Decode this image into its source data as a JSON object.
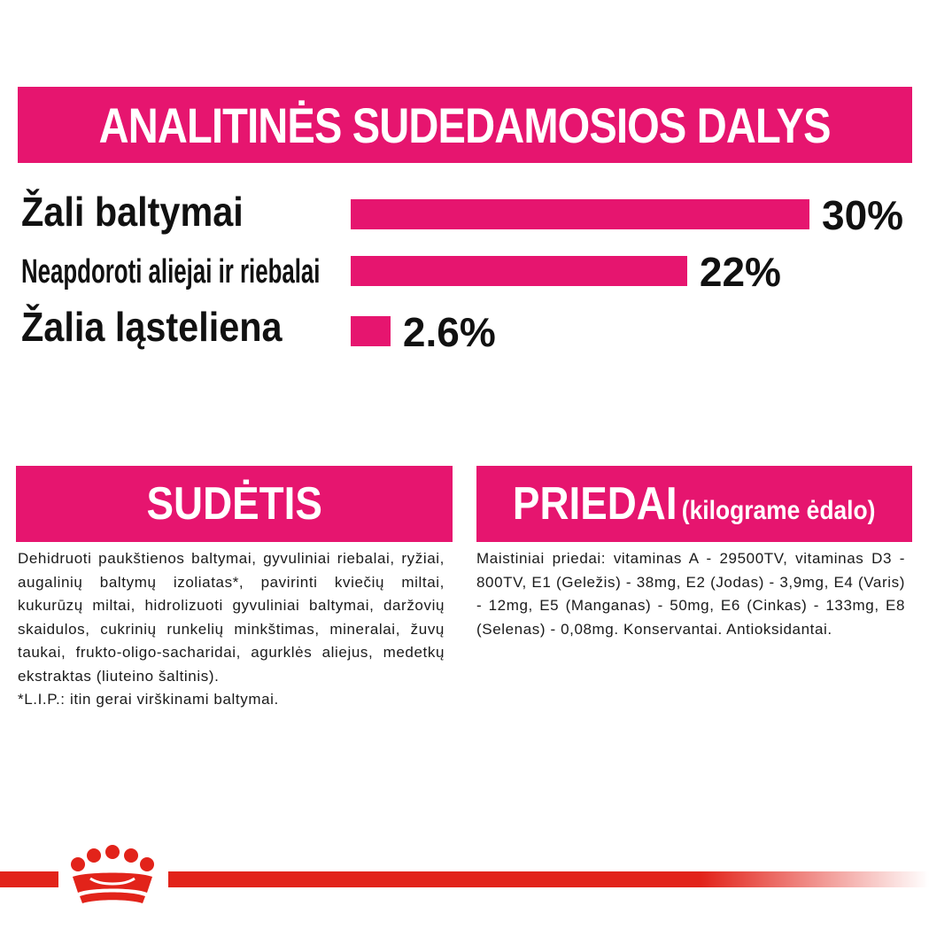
{
  "colors": {
    "accent": "#e6156f",
    "footer_red": "#e2231a",
    "text": "#111111"
  },
  "header": {
    "title": "ANALITINĖS SUDEDAMOSIOS DALYS"
  },
  "nutrients": [
    {
      "label": "Žali baltymai",
      "value": "30%",
      "percent": 30
    },
    {
      "label": "Neapdoroti aliejai ir riebalai",
      "value": "22%",
      "percent": 22
    },
    {
      "label": "Žalia ląsteliena",
      "value": "2.6%",
      "percent": 2.6
    }
  ],
  "composition": {
    "title": "SUDĖTIS",
    "text": "Dehidruoti paukštienos baltymai, gyvuliniai riebalai, ryžiai, augalinių baltymų izoliatas*, pavirinti kviečių miltai, kukurūzų miltai, hidrolizuoti gyvuliniai baltymai, daržovių skaidulos, cukrinių runkelių minkštimas, mineralai, žuvų taukai, frukto-oligo-sacharidai, agurklės aliejus, medetkų ekstraktas (liuteino šaltinis).",
    "footnote": "*L.I.P.: itin gerai virškinami baltymai."
  },
  "additives": {
    "title": "PRIEDAI",
    "subtitle": "(kilograme ėdalo)",
    "text": "Maistiniai priedai: vitaminas A - 29500TV, vitaminas D3 - 800TV, E1 (Geležis) - 38mg, E2 (Jodas) - 3,9mg, E4 (Varis) - 12mg, E5 (Manganas) - 50mg, E6 (Cinkas) - 133mg, E8 (Selenas) - 0,08mg. Konservantai. Antioksidantai."
  },
  "footer": {
    "logo_icon": "royal-canin-crown-logo"
  }
}
